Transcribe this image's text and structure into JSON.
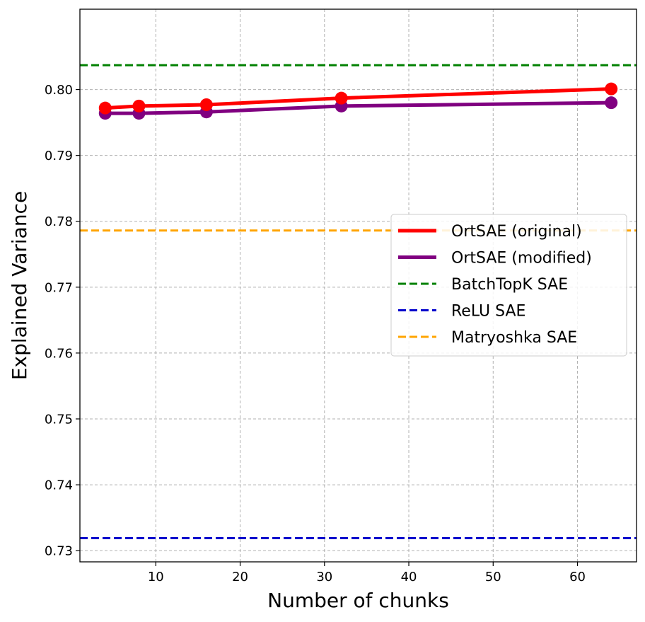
{
  "chart_data": {
    "type": "line",
    "title": "",
    "xlabel": "Number of chunks",
    "ylabel": "Explained Variance",
    "xlim": [
      1,
      67
    ],
    "ylim": [
      0.7283,
      0.8122
    ],
    "xticks": [
      10,
      20,
      30,
      40,
      50,
      60
    ],
    "yticks": [
      0.73,
      0.74,
      0.75,
      0.76,
      0.77,
      0.78,
      0.79,
      0.8
    ],
    "ytick_labels": [
      "0.73",
      "0.74",
      "0.75",
      "0.76",
      "0.77",
      "0.78",
      "0.79",
      "0.80"
    ],
    "grid": true,
    "legend_position": "center-right",
    "series": [
      {
        "name": "OrtSAE (original)",
        "color": "#ff0000",
        "style": "solid-markers",
        "x": [
          4,
          8,
          16,
          32,
          64
        ],
        "y": [
          0.7972,
          0.7975,
          0.7977,
          0.7987,
          0.8001
        ]
      },
      {
        "name": "OrtSAE (modified)",
        "color": "#800080",
        "style": "solid-markers",
        "x": [
          4,
          8,
          16,
          32,
          64
        ],
        "y": [
          0.7964,
          0.7964,
          0.7966,
          0.7975,
          0.798
        ]
      }
    ],
    "reference_lines": [
      {
        "name": "BatchTopK SAE",
        "color": "#008000",
        "y": 0.8037
      },
      {
        "name": "ReLU SAE",
        "color": "#0000cc",
        "y": 0.7319
      },
      {
        "name": "Matryoshka SAE",
        "color": "#ffa500",
        "y": 0.7786
      }
    ]
  }
}
